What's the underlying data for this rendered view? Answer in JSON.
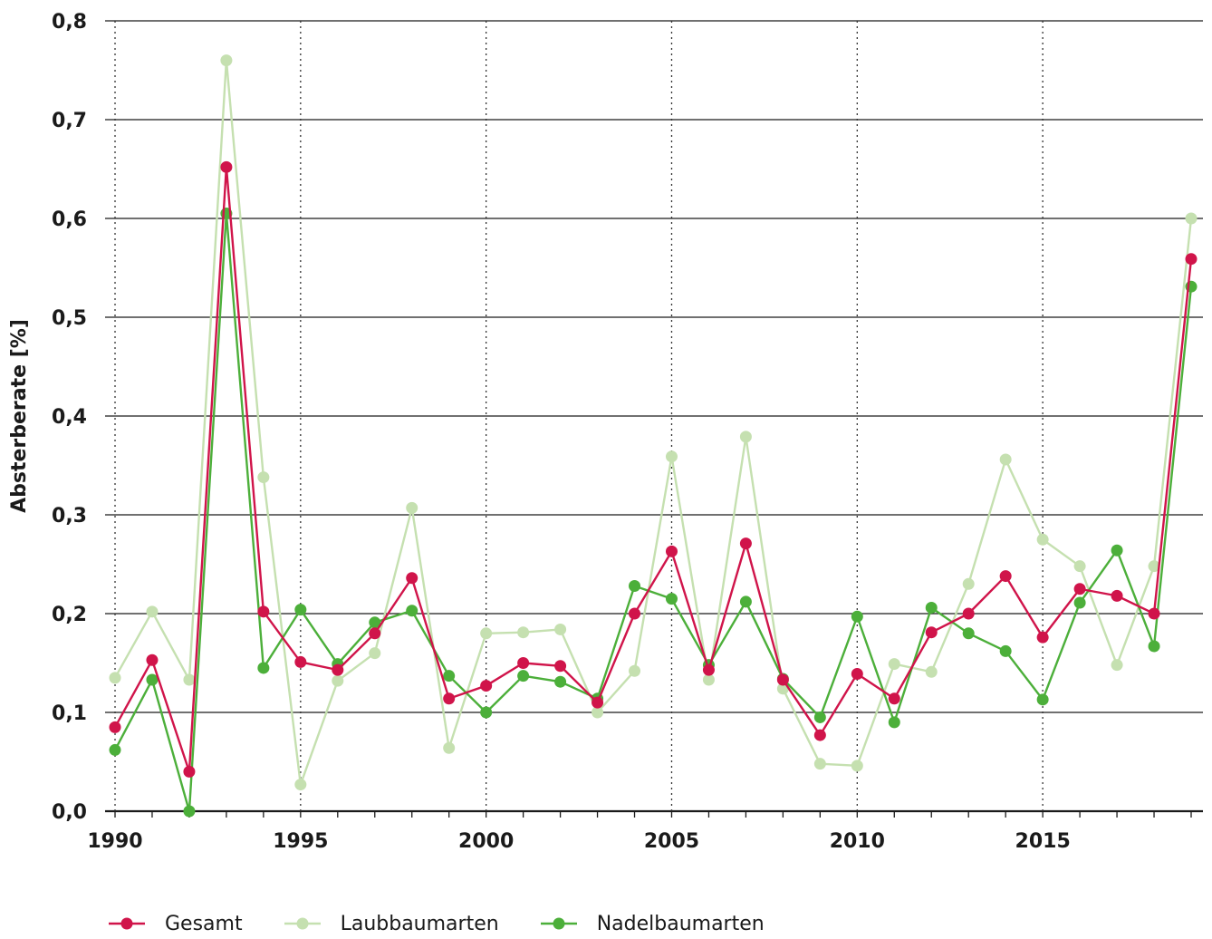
{
  "chart_data": {
    "type": "line",
    "ylabel": "Absterberate [%]",
    "xlabel": "",
    "title": "",
    "xlim": [
      1990,
      2019
    ],
    "ylim": [
      0,
      0.8
    ],
    "x_ticks": [
      1990,
      1995,
      2000,
      2005,
      2010,
      2015
    ],
    "x_tick_labels": [
      "1990",
      "1995",
      "2000",
      "2005",
      "2010",
      "2015"
    ],
    "y_ticks": [
      0,
      0.1,
      0.2,
      0.3,
      0.4,
      0.5,
      0.6,
      0.7,
      0.8
    ],
    "y_tick_labels": [
      "0,0",
      "0,1",
      "0,2",
      "0,3",
      "0,4",
      "0,5",
      "0,6",
      "0,7",
      "0,8"
    ],
    "grid": {
      "horizontal": "solid",
      "vertical": "dotted at labelled years"
    },
    "legend_position": "bottom-left",
    "x": [
      1990,
      1991,
      1992,
      1993,
      1994,
      1995,
      1996,
      1997,
      1998,
      1999,
      2000,
      2001,
      2002,
      2003,
      2004,
      2005,
      2006,
      2007,
      2008,
      2009,
      2010,
      2011,
      2012,
      2013,
      2014,
      2015,
      2016,
      2017,
      2018,
      2019
    ],
    "series": [
      {
        "name": "Laubbaumarten",
        "color": "#c5e0b0",
        "values": [
          0.135,
          0.202,
          0.133,
          0.76,
          0.338,
          0.027,
          0.132,
          0.16,
          0.307,
          0.064,
          0.18,
          0.181,
          0.184,
          0.1,
          0.142,
          0.359,
          0.133,
          0.379,
          0.124,
          0.048,
          0.046,
          0.149,
          0.141,
          0.23,
          0.356,
          0.275,
          0.248,
          0.148,
          0.248,
          0.6
        ]
      },
      {
        "name": "Nadelbaumarten",
        "color": "#4caf3a",
        "values": [
          0.062,
          0.133,
          0.0,
          0.605,
          0.145,
          0.204,
          0.149,
          0.191,
          0.203,
          0.137,
          0.1,
          0.137,
          0.131,
          0.114,
          0.228,
          0.215,
          0.148,
          0.212,
          0.134,
          0.095,
          0.197,
          0.09,
          0.206,
          0.18,
          0.162,
          0.113,
          0.211,
          0.264,
          0.167,
          0.531
        ]
      },
      {
        "name": "Gesamt",
        "color": "#d0144a",
        "values": [
          0.085,
          0.153,
          0.04,
          0.652,
          0.202,
          0.151,
          0.143,
          0.18,
          0.236,
          0.114,
          0.127,
          0.15,
          0.147,
          0.11,
          0.2,
          0.263,
          0.143,
          0.271,
          0.133,
          0.077,
          0.139,
          0.114,
          0.181,
          0.2,
          0.238,
          0.176,
          0.225,
          0.218,
          0.2,
          0.559
        ]
      }
    ],
    "legend_order": [
      "Gesamt",
      "Laubbaumarten",
      "Nadelbaumarten"
    ]
  }
}
